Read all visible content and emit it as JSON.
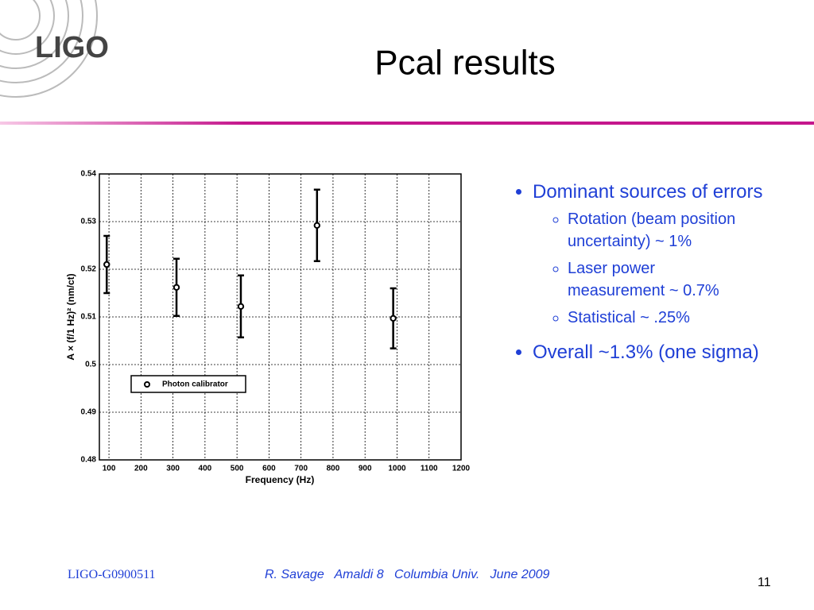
{
  "logo": "LIGO",
  "title": "Pcal results",
  "bullets": [
    {
      "text": "Dominant sources of errors",
      "sub": [
        "Rotation (beam position uncertainty) ~ 1%",
        "Laser power measurement ~ 0.7%",
        "Statistical ~ .25%"
      ]
    },
    {
      "text": "Overall ~1.3% (one sigma)",
      "sub": []
    }
  ],
  "footer": {
    "doc_id": "LIGO-G0900511",
    "author": "R. Savage   Amaldi 8   Columbia Univ.   June 2009",
    "page": "11"
  },
  "chart_data": {
    "type": "errorbar",
    "xlabel": "Frequency (Hz)",
    "ylabel": "A × (f/1 Hz)² (nm/ct)",
    "series": [
      {
        "name": "Photon calibrator",
        "color": "#000000",
        "x": [
          93,
          311,
          512,
          750,
          988
        ],
        "values": [
          0.521,
          0.5162,
          0.5122,
          0.5292,
          0.5097
        ],
        "errors": [
          0.006,
          0.006,
          0.0065,
          0.0075,
          0.0063
        ]
      }
    ],
    "xlim": [
      70,
      1200
    ],
    "xticks": [
      100,
      200,
      300,
      400,
      500,
      600,
      700,
      800,
      900,
      1000,
      1100,
      1200
    ],
    "ylim": [
      0.48,
      0.54
    ],
    "yticks": [
      0.48,
      0.49,
      0.5,
      0.51,
      0.52,
      0.53,
      0.54
    ],
    "grid": true,
    "legend": "lower-left"
  }
}
